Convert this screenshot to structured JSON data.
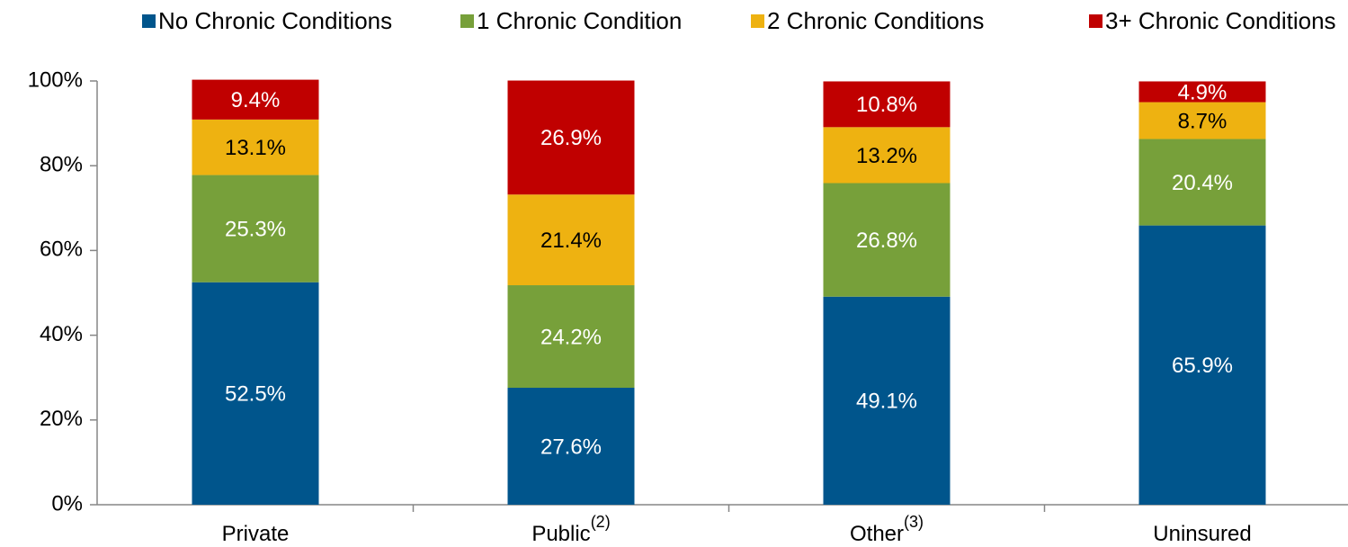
{
  "chart_data": {
    "type": "stacked_bar",
    "categories": [
      "Private",
      "Public",
      "Other",
      "Uninsured"
    ],
    "category_notes": [
      null,
      "(2)",
      "(3)",
      null
    ],
    "series": [
      {
        "name": "No Chronic Conditions",
        "color": "#00558c",
        "label_color": "#ffffff",
        "values": [
          52.5,
          27.6,
          49.1,
          65.9
        ],
        "value_labels": [
          "52.5%",
          "27.6%",
          "49.1%",
          "65.9%"
        ]
      },
      {
        "name": "1 Chronic Condition",
        "color": "#77a03a",
        "label_color": "#ffffff",
        "values": [
          25.3,
          24.2,
          26.8,
          20.4
        ],
        "value_labels": [
          "25.3%",
          "24.2%",
          "26.8%",
          "20.4%"
        ]
      },
      {
        "name": "2 Chronic Conditions",
        "color": "#eeb211",
        "label_color": "#000000",
        "values": [
          13.1,
          21.4,
          13.2,
          8.7
        ],
        "value_labels": [
          "13.1%",
          "21.4%",
          "13.2%",
          "8.7%"
        ]
      },
      {
        "name": "3+ Chronic Conditions",
        "color": "#c00000",
        "label_color": "#ffffff",
        "values": [
          9.4,
          26.9,
          10.8,
          4.9
        ],
        "value_labels": [
          "9.4%",
          "26.9%",
          "10.8%",
          "4.9%"
        ]
      }
    ],
    "ylim": [
      0,
      100
    ],
    "yticks": [
      {
        "value": 0,
        "label": "0%"
      },
      {
        "value": 20,
        "label": "20%"
      },
      {
        "value": 40,
        "label": "40%"
      },
      {
        "value": 60,
        "label": "60%"
      },
      {
        "value": 80,
        "label": "80%"
      },
      {
        "value": 100,
        "label": "100%"
      }
    ],
    "legend": "top"
  }
}
